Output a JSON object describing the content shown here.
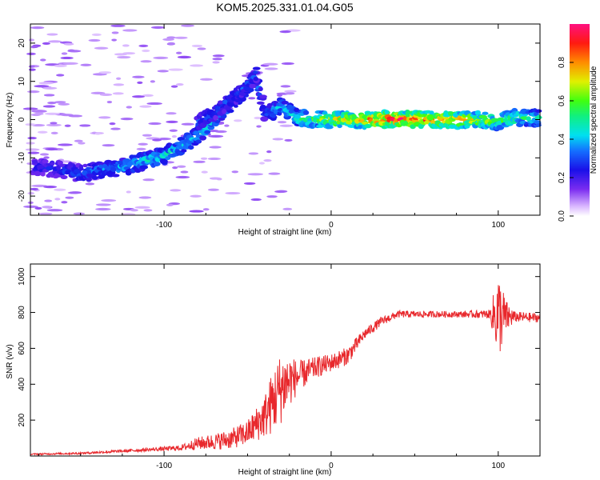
{
  "title": "KOM5.2025.331.01.04.G05",
  "chart_data": [
    {
      "type": "heatmap",
      "title": "KOM5.2025.331.01.04.G05",
      "xlabel": "Height of straight line (km)",
      "ylabel": "Frequency (Hz)",
      "xlim": [
        -180,
        125
      ],
      "ylim": [
        -25,
        25
      ],
      "x_ticks": [
        -100,
        0,
        100
      ],
      "y_ticks": [
        -20,
        -10,
        0,
        10,
        20
      ],
      "colorbar_label": "Normalized spectral amplitude",
      "colorbar_ticks": [
        "0.0",
        "0.2",
        "0.4",
        "0.6",
        "0.8"
      ],
      "colorbar_range": [
        0,
        1
      ],
      "ridge_x": [
        -180,
        -165,
        -150,
        -135,
        -125,
        -110,
        -100,
        -90,
        -80,
        -70,
        -60,
        -50,
        -45,
        -40,
        -35,
        -30,
        -25,
        -20,
        -10,
        0,
        20,
        40,
        60,
        80,
        100,
        110,
        125
      ],
      "ridge_y": [
        -12,
        -13,
        -14,
        -13,
        -12.5,
        -10.5,
        -9.5,
        -7,
        -4,
        0,
        4,
        8,
        11,
        2,
        2,
        3.5,
        2,
        0.5,
        0,
        0,
        0,
        0,
        0,
        0,
        -0.5,
        0.5,
        0.5
      ],
      "ridge_amplitude": [
        0.2,
        0.25,
        0.3,
        0.35,
        0.4,
        0.45,
        0.45,
        0.4,
        0.45,
        0.45,
        0.35,
        0.3,
        0.3,
        0.3,
        0.35,
        0.4,
        0.45,
        0.55,
        0.6,
        0.75,
        0.85,
        1.0,
        0.9,
        0.8,
        0.6,
        0.55,
        0.5
      ],
      "secondary_branch_x": [
        -80,
        -70,
        -60,
        -50,
        -45
      ],
      "secondary_branch_y": [
        -1,
        2,
        5,
        9,
        12
      ]
    },
    {
      "type": "line",
      "xlabel": "Height of straight line (km)",
      "ylabel": "SNR (v/v)",
      "xlim": [
        -180,
        125
      ],
      "ylim": [
        0,
        1070
      ],
      "x_ticks": [
        -100,
        0,
        100
      ],
      "y_ticks": [
        200,
        400,
        600,
        800,
        1000
      ],
      "series": [
        {
          "name": "SNR",
          "color": "#e8282c",
          "envelope_x": [
            -180,
            -150,
            -130,
            -110,
            -90,
            -80,
            -70,
            -60,
            -50,
            -40,
            -35,
            -30,
            -25,
            -20,
            -10,
            0,
            10,
            20,
            30,
            40,
            60,
            80,
            95,
            100,
            105,
            110,
            125
          ],
          "mean": [
            10,
            15,
            25,
            35,
            45,
            70,
            80,
            95,
            130,
            220,
            300,
            380,
            420,
            440,
            490,
            520,
            560,
            680,
            750,
            790,
            790,
            790,
            790,
            780,
            775,
            775,
            770
          ],
          "noise_amplitude": [
            4,
            6,
            8,
            10,
            15,
            35,
            45,
            55,
            70,
            120,
            180,
            200,
            150,
            90,
            60,
            50,
            50,
            30,
            25,
            20,
            18,
            18,
            25,
            250,
            90,
            30,
            25
          ]
        }
      ]
    }
  ]
}
